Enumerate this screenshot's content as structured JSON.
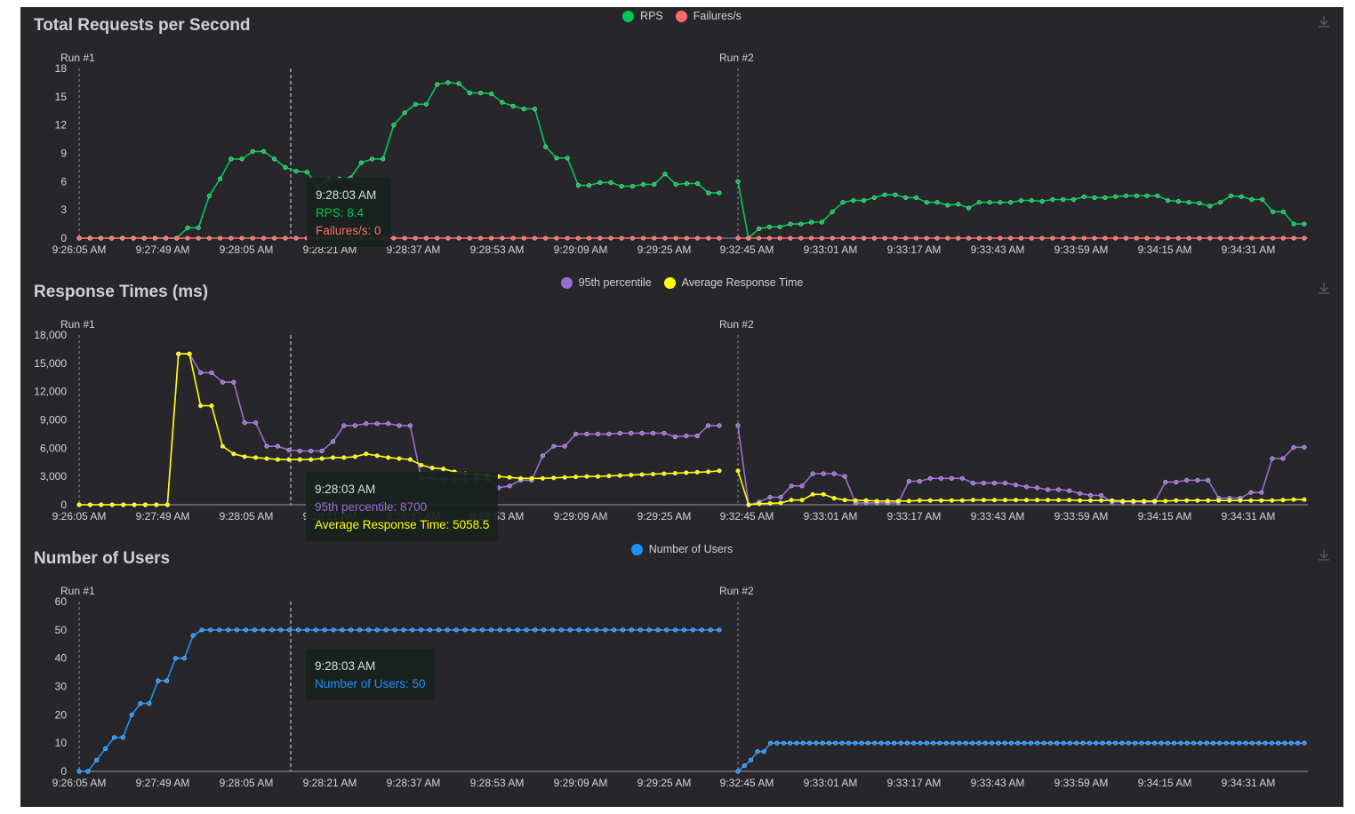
{
  "colors": {
    "background": "#27272b",
    "axis_text": "#d4d4d6",
    "rps": "#00c853",
    "failures": "#ff6b6b",
    "p95": "#9c6cd4",
    "avg": "#ffff00",
    "users": "#1e90ff"
  },
  "icons": {
    "download": "download-icon"
  },
  "x_ticks_run1": [
    "9:26:05 AM",
    "9:27:49 AM",
    "9:28:05 AM",
    "9:28:21 AM",
    "9:28:37 AM",
    "9:28:53 AM",
    "9:29:09 AM",
    "9:29:25 AM"
  ],
  "x_ticks_run2": [
    "9:32:45 AM",
    "9:33:01 AM",
    "9:33:17 AM",
    "9:33:43 AM",
    "9:33:59 AM",
    "9:34:15 AM",
    "9:34:31 AM"
  ],
  "runs": [
    "Run #1",
    "Run #2"
  ],
  "chart_data": [
    {
      "type": "line",
      "title": "Total Requests per Second",
      "ylim": [
        0,
        18
      ],
      "yticks": [
        "0",
        "3",
        "6",
        "9",
        "12",
        "15",
        "18"
      ],
      "legend_position": "top-center",
      "grid": false,
      "series": [
        {
          "name": "RPS",
          "color": "#00c853",
          "run1": [
            0,
            0,
            0,
            0,
            0,
            0,
            0,
            0,
            0,
            0,
            1.1,
            1.1,
            4.5,
            6.3,
            8.4,
            8.4,
            9.2,
            9.2,
            8.4,
            7.5,
            7.1,
            7.0,
            5.5,
            6.2,
            6.3,
            6.4,
            8.0,
            8.4,
            8.4,
            12,
            13.3,
            14.2,
            14.2,
            16.3,
            16.5,
            16.4,
            15.4,
            15.4,
            15.3,
            14.4,
            14.0,
            13.7,
            13.7,
            9.7,
            8.5,
            8.5,
            5.6,
            5.6,
            5.9,
            5.9,
            5.5,
            5.5,
            5.7,
            5.7,
            6.8,
            5.7,
            5.8,
            5.8,
            4.8,
            4.8
          ],
          "run2": [
            6.0,
            0,
            1.0,
            1.2,
            1.2,
            1.5,
            1.5,
            1.7,
            1.7,
            2.8,
            3.8,
            4.0,
            4.0,
            4.3,
            4.6,
            4.6,
            4.3,
            4.3,
            3.8,
            3.8,
            3.5,
            3.6,
            3.2,
            3.8,
            3.8,
            3.8,
            3.8,
            4.0,
            4.0,
            3.9,
            4.1,
            4.1,
            4.1,
            4.4,
            4.3,
            4.3,
            4.4,
            4.5,
            4.5,
            4.5,
            4.5,
            4.0,
            3.9,
            3.8,
            3.7,
            3.4,
            3.8,
            4.5,
            4.4,
            4.1,
            4.1,
            2.8,
            2.8,
            1.5,
            1.5
          ]
        },
        {
          "name": "Failures/s",
          "color": "#ff6b6b",
          "run1": [
            0,
            0,
            0,
            0,
            0,
            0,
            0,
            0,
            0,
            0,
            0,
            0,
            0,
            0,
            0,
            0,
            0,
            0,
            0,
            0,
            0,
            0,
            0,
            0,
            0,
            0,
            0,
            0,
            0,
            0,
            0,
            0,
            0,
            0,
            0,
            0,
            0,
            0,
            0,
            0,
            0,
            0,
            0,
            0,
            0,
            0,
            0,
            0,
            0,
            0,
            0,
            0,
            0,
            0,
            0,
            0,
            0,
            0,
            0,
            0
          ],
          "run2": [
            0,
            0,
            0,
            0,
            0,
            0,
            0,
            0,
            0,
            0,
            0,
            0,
            0,
            0,
            0,
            0,
            0,
            0,
            0,
            0,
            0,
            0,
            0,
            0,
            0,
            0,
            0,
            0,
            0,
            0,
            0,
            0,
            0,
            0,
            0,
            0,
            0,
            0,
            0,
            0,
            0,
            0,
            0,
            0,
            0,
            0,
            0,
            0,
            0,
            0,
            0,
            0,
            0,
            0,
            0
          ]
        }
      ],
      "tooltip": {
        "time": "9:28:03 AM",
        "lines": [
          {
            "text": "RPS: 8.4",
            "color": "#00c853"
          },
          {
            "text": "Failures/s: 0",
            "color": "#ff6b6b"
          }
        ]
      }
    },
    {
      "type": "line",
      "title": "Response Times (ms)",
      "ylim": [
        0,
        18000
      ],
      "yticks": [
        "0",
        "3,000",
        "6,000",
        "9,000",
        "12,000",
        "15,000",
        "18,000"
      ],
      "legend_position": "top-center",
      "grid": false,
      "series": [
        {
          "name": "95th percentile",
          "color": "#9c6cd4",
          "run1": [
            0,
            0,
            0,
            0,
            0,
            0,
            0,
            0,
            0,
            16000,
            16000,
            14000,
            14000,
            13000,
            13000,
            8700,
            8700,
            6200,
            6200,
            5800,
            5700,
            5700,
            5700,
            6700,
            8400,
            8400,
            8600,
            8600,
            8600,
            8400,
            8400,
            2800,
            2800,
            2700,
            2700,
            2700,
            2700,
            2700,
            1800,
            2000,
            2600,
            2600,
            5200,
            6200,
            6200,
            7500,
            7500,
            7500,
            7500,
            7600,
            7600,
            7600,
            7600,
            7600,
            7200,
            7300,
            7300,
            8400,
            8400
          ],
          "run2": [
            8400,
            0,
            300,
            800,
            800,
            2000,
            2000,
            3300,
            3300,
            3300,
            3000,
            200,
            200,
            200,
            200,
            200,
            2500,
            2500,
            2800,
            2800,
            2800,
            2800,
            2300,
            2300,
            2300,
            2300,
            2100,
            1900,
            1800,
            1600,
            1600,
            1500,
            1200,
            1000,
            1000,
            300,
            300,
            300,
            300,
            300,
            2400,
            2400,
            2600,
            2600,
            2600,
            700,
            700,
            700,
            1300,
            1300,
            4900,
            4900,
            6100,
            6100
          ]
        },
        {
          "name": "Average Response Time",
          "color": "#ffff00",
          "run1": [
            0,
            0,
            0,
            0,
            0,
            0,
            0,
            0,
            0,
            16000,
            16000,
            10500,
            10500,
            6200,
            5400,
            5100,
            5000,
            4900,
            4800,
            4800,
            4800,
            4800,
            4900,
            5000,
            5000,
            5100,
            5400,
            5200,
            5000,
            4900,
            4800,
            4200,
            3900,
            3800,
            3500,
            3300,
            3200,
            3100,
            3000,
            2900,
            2800,
            2800,
            2800,
            2850,
            2900,
            2950,
            3000,
            3000,
            3050,
            3100,
            3150,
            3200,
            3250,
            3300,
            3350,
            3400,
            3450,
            3500,
            3600
          ],
          "run2": [
            3600,
            0,
            100,
            150,
            200,
            500,
            500,
            1100,
            1100,
            700,
            500,
            450,
            450,
            400,
            400,
            400,
            400,
            450,
            450,
            450,
            450,
            450,
            500,
            500,
            500,
            500,
            500,
            500,
            500,
            500,
            500,
            500,
            450,
            450,
            450,
            450,
            400,
            400,
            400,
            400,
            400,
            450,
            450,
            450,
            450,
            450,
            450,
            450,
            450,
            450,
            450,
            500,
            550,
            550
          ]
        }
      ],
      "tooltip": {
        "time": "9:28:03 AM",
        "lines": [
          {
            "text": "95th percentile: 8700",
            "color": "#9c6cd4"
          },
          {
            "text": "Average Response Time: 5058.5",
            "color": "#ffff00"
          }
        ]
      }
    },
    {
      "type": "line",
      "title": "Number of Users",
      "ylim": [
        0,
        60
      ],
      "yticks": [
        "0",
        "10",
        "20",
        "30",
        "40",
        "50",
        "60"
      ],
      "legend_position": "top-center",
      "grid": false,
      "series": [
        {
          "name": "Number of Users",
          "color": "#1e90ff",
          "run1": [
            0,
            0,
            4,
            8,
            12,
            12,
            20,
            24,
            24,
            32,
            32,
            40,
            40,
            48,
            50,
            50,
            50,
            50,
            50,
            50,
            50,
            50,
            50,
            50,
            50,
            50,
            50,
            50,
            50,
            50,
            50,
            50,
            50,
            50,
            50,
            50,
            50,
            50,
            50,
            50,
            50,
            50,
            50,
            50,
            50,
            50,
            50,
            50,
            50,
            50,
            50,
            50,
            50,
            50,
            50,
            50,
            50,
            50,
            50,
            50,
            50,
            50,
            50,
            50,
            50,
            50,
            50,
            50,
            50,
            50,
            50,
            50,
            50,
            50
          ],
          "run2": [
            0,
            2,
            4,
            7,
            7,
            10,
            10,
            10,
            10,
            10,
            10,
            10,
            10,
            10,
            10,
            10,
            10,
            10,
            10,
            10,
            10,
            10,
            10,
            10,
            10,
            10,
            10,
            10,
            10,
            10,
            10,
            10,
            10,
            10,
            10,
            10,
            10,
            10,
            10,
            10,
            10,
            10,
            10,
            10,
            10,
            10,
            10,
            10,
            10,
            10,
            10,
            10,
            10,
            10,
            10,
            10,
            10,
            10,
            10,
            10,
            10,
            10,
            10,
            10,
            10,
            10,
            10,
            10,
            10,
            10,
            10,
            10,
            10,
            10,
            10,
            10,
            10,
            10,
            10,
            10,
            10,
            10,
            10,
            10,
            10,
            10,
            10,
            10
          ]
        }
      ],
      "tooltip": {
        "time": "9:28:03 AM",
        "lines": [
          {
            "text": "Number of Users: 50",
            "color": "#1e90ff"
          }
        ]
      }
    }
  ]
}
